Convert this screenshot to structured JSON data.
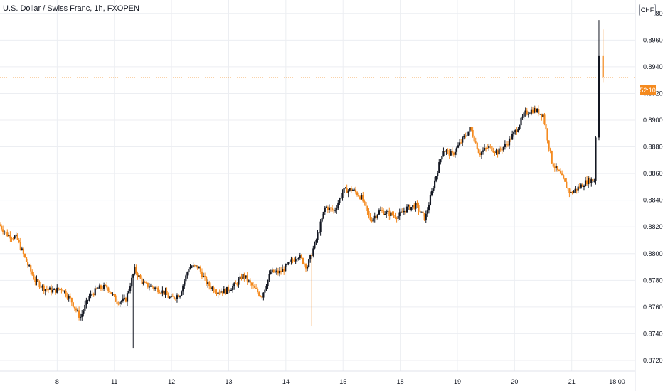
{
  "header": {
    "symbol_title": "U.S. Dollar / Swiss Franc, 1h, FXOPEN"
  },
  "currency_button": "CHF",
  "countdown_label": "52:10",
  "colors": {
    "up": "#131722",
    "down": "#f48a1f",
    "grid": "#eceef2",
    "price_line": "#f48a1f",
    "axis_text": "#131722"
  },
  "chart_data": {
    "type": "candlestick",
    "title": "U.S. Dollar / Swiss Franc, 1h, FXOPEN",
    "ylim": [
      0.8712,
      0.899
    ],
    "y_ticks": [
      "0.89800",
      "0.89600",
      "0.89400",
      "0.89200",
      "0.89000",
      "0.88800",
      "0.88600",
      "0.88400",
      "0.88200",
      "0.88000",
      "0.87800",
      "0.87600",
      "0.87400",
      "0.87200"
    ],
    "y_tick_values": [
      0.898,
      0.896,
      0.894,
      0.892,
      0.89,
      0.888,
      0.886,
      0.884,
      0.882,
      0.88,
      0.878,
      0.876,
      0.874,
      0.872
    ],
    "x_ticks": [
      "8",
      "11",
      "12",
      "13",
      "14",
      "15",
      "18",
      "19",
      "20",
      "21",
      "18:00"
    ],
    "x_tick_positions": [
      6.3,
      12.6,
      18.9,
      25.2,
      31.5,
      37.8,
      44.1,
      50.4,
      56.7,
      63,
      68
    ],
    "x_range": [
      0,
      70
    ],
    "current_price": 0.8932,
    "countdown": "52:10",
    "grid": true,
    "anchors": [
      {
        "t": 0,
        "p": 0.8822
      },
      {
        "t": 1,
        "p": 0.8814
      },
      {
        "t": 2,
        "p": 0.8812
      },
      {
        "t": 3,
        "p": 0.8795
      },
      {
        "t": 4,
        "p": 0.878
      },
      {
        "t": 5,
        "p": 0.8774
      },
      {
        "t": 6,
        "p": 0.8772
      },
      {
        "t": 7,
        "p": 0.8774
      },
      {
        "t": 8,
        "p": 0.8765
      },
      {
        "t": 9,
        "p": 0.8752
      },
      {
        "t": 10,
        "p": 0.8768
      },
      {
        "t": 11,
        "p": 0.8774
      },
      {
        "t": 12,
        "p": 0.8775
      },
      {
        "t": 13,
        "p": 0.8764
      },
      {
        "t": 14,
        "p": 0.8765
      },
      {
        "t": 15,
        "p": 0.8788
      },
      {
        "t": 16,
        "p": 0.8777
      },
      {
        "t": 17,
        "p": 0.8775
      },
      {
        "t": 18,
        "p": 0.8772
      },
      {
        "t": 19,
        "p": 0.8766
      },
      {
        "t": 20,
        "p": 0.877
      },
      {
        "t": 21,
        "p": 0.879
      },
      {
        "t": 22,
        "p": 0.879
      },
      {
        "t": 23,
        "p": 0.8777
      },
      {
        "t": 24,
        "p": 0.8772
      },
      {
        "t": 25,
        "p": 0.8772
      },
      {
        "t": 26,
        "p": 0.8776
      },
      {
        "t": 27,
        "p": 0.8784
      },
      {
        "t": 28,
        "p": 0.8775
      },
      {
        "t": 29,
        "p": 0.8768
      },
      {
        "t": 30,
        "p": 0.8786
      },
      {
        "t": 31,
        "p": 0.8786
      },
      {
        "t": 32,
        "p": 0.8792
      },
      {
        "t": 33,
        "p": 0.8799
      },
      {
        "t": 34,
        "p": 0.879
      },
      {
        "t": 35,
        "p": 0.881
      },
      {
        "t": 36,
        "p": 0.8835
      },
      {
        "t": 37,
        "p": 0.8832
      },
      {
        "t": 38,
        "p": 0.8847
      },
      {
        "t": 39,
        "p": 0.8848
      },
      {
        "t": 40,
        "p": 0.8842
      },
      {
        "t": 41,
        "p": 0.8825
      },
      {
        "t": 42,
        "p": 0.8832
      },
      {
        "t": 43,
        "p": 0.883
      },
      {
        "t": 44,
        "p": 0.8828
      },
      {
        "t": 45,
        "p": 0.8834
      },
      {
        "t": 46,
        "p": 0.8836
      },
      {
        "t": 47,
        "p": 0.8826
      },
      {
        "t": 48,
        "p": 0.8853
      },
      {
        "t": 49,
        "p": 0.8878
      },
      {
        "t": 50,
        "p": 0.8874
      },
      {
        "t": 51,
        "p": 0.8884
      },
      {
        "t": 52,
        "p": 0.8894
      },
      {
        "t": 53,
        "p": 0.8875
      },
      {
        "t": 54,
        "p": 0.888
      },
      {
        "t": 55,
        "p": 0.8876
      },
      {
        "t": 56,
        "p": 0.8882
      },
      {
        "t": 57,
        "p": 0.8892
      },
      {
        "t": 58,
        "p": 0.8905
      },
      {
        "t": 59,
        "p": 0.8908
      },
      {
        "t": 60,
        "p": 0.8904
      },
      {
        "t": 61,
        "p": 0.8868
      },
      {
        "t": 62,
        "p": 0.8858
      },
      {
        "t": 63,
        "p": 0.8845
      },
      {
        "t": 64,
        "p": 0.885
      },
      {
        "t": 65,
        "p": 0.8855
      },
      {
        "t": 65.7,
        "p": 0.8855
      },
      {
        "t": 66,
        "p": 0.8948
      },
      {
        "t": 66.5,
        "p": 0.8932
      }
    ]
  }
}
